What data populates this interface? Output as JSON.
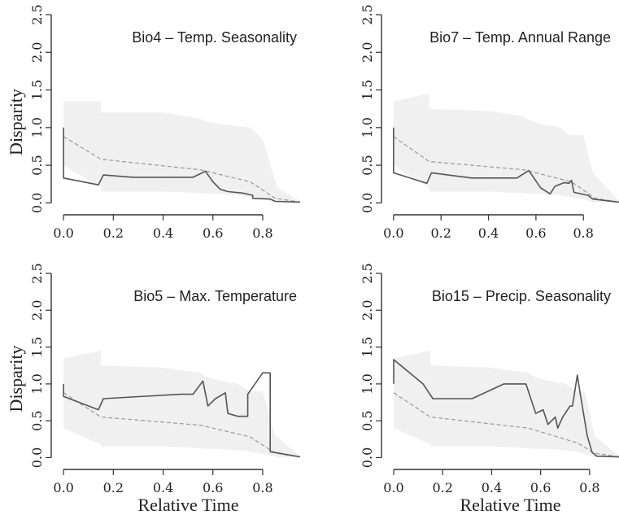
{
  "chart_data": [
    {
      "type": "line",
      "title": "Bio4 – Temp. Seasonality",
      "ylabel": "Disparity",
      "xlabel": "",
      "xlim": [
        -0.02,
        0.97
      ],
      "ylim": [
        -0.05,
        2.5
      ],
      "xticks": [
        "0.0",
        "0.2",
        "0.4",
        "0.6",
        "0.8"
      ],
      "yticks": [
        "0.0",
        "0.5",
        "1.0",
        "1.5",
        "2.0",
        "2.5"
      ],
      "band": {
        "x": [
          0.0,
          0.15,
          0.15,
          0.4,
          0.55,
          0.57,
          0.62,
          0.7,
          0.75,
          0.8,
          0.86,
          0.95
        ],
        "upper": [
          1.35,
          1.35,
          1.2,
          1.2,
          1.12,
          1.08,
          1.05,
          1.02,
          1.0,
          0.85,
          0.2,
          0.02
        ],
        "lower": [
          0.5,
          0.2,
          0.15,
          0.15,
          0.13,
          0.12,
          0.12,
          0.1,
          0.08,
          0.05,
          0.01,
          0.0
        ]
      },
      "observed": {
        "x": [
          0.0,
          0.0,
          0.14,
          0.16,
          0.28,
          0.52,
          0.57,
          0.6,
          0.63,
          0.66,
          0.72,
          0.76,
          0.76,
          0.83,
          0.85,
          0.95
        ],
        "y": [
          1.0,
          0.33,
          0.24,
          0.37,
          0.34,
          0.34,
          0.42,
          0.28,
          0.18,
          0.15,
          0.13,
          0.1,
          0.06,
          0.05,
          0.02,
          0.01
        ]
      },
      "null_median": {
        "x": [
          0.0,
          0.15,
          0.55,
          0.75,
          0.85,
          0.95
        ],
        "y": [
          0.88,
          0.58,
          0.44,
          0.28,
          0.06,
          0.01
        ]
      }
    },
    {
      "type": "line",
      "title": "Bio7 – Temp. Annual Range",
      "ylabel": "",
      "xlabel": "",
      "xlim": [
        -0.02,
        0.95
      ],
      "ylim": [
        -0.05,
        2.5
      ],
      "xticks": [
        "0.0",
        "0.2",
        "0.4",
        "0.6",
        "0.8"
      ],
      "yticks": [
        "0.0",
        "0.5",
        "1.0",
        "1.5",
        "2.0",
        "2.5"
      ],
      "band": {
        "x": [
          0.0,
          0.15,
          0.15,
          0.4,
          0.55,
          0.57,
          0.62,
          0.7,
          0.74,
          0.8,
          0.84,
          0.95
        ],
        "upper": [
          1.35,
          1.45,
          1.25,
          1.22,
          1.15,
          1.1,
          1.05,
          1.0,
          0.9,
          0.9,
          0.4,
          0.02
        ],
        "lower": [
          0.5,
          0.2,
          0.15,
          0.15,
          0.13,
          0.12,
          0.12,
          0.1,
          0.08,
          0.05,
          0.01,
          0.0
        ]
      },
      "observed": {
        "x": [
          0.0,
          0.0,
          0.14,
          0.16,
          0.33,
          0.52,
          0.57,
          0.62,
          0.66,
          0.68,
          0.72,
          0.74,
          0.75,
          0.76,
          0.82,
          0.84,
          0.95
        ],
        "y": [
          1.0,
          0.4,
          0.26,
          0.4,
          0.33,
          0.33,
          0.43,
          0.2,
          0.12,
          0.22,
          0.27,
          0.26,
          0.3,
          0.14,
          0.1,
          0.05,
          0.01
        ]
      },
      "null_median": {
        "x": [
          0.0,
          0.15,
          0.55,
          0.75,
          0.85,
          0.95
        ],
        "y": [
          0.88,
          0.55,
          0.44,
          0.28,
          0.06,
          0.01
        ]
      }
    },
    {
      "type": "line",
      "title": "Bio5 – Max. Temperature",
      "ylabel": "Disparity",
      "xlabel": "Relative Time",
      "xlim": [
        -0.02,
        0.97
      ],
      "ylim": [
        -0.05,
        2.5
      ],
      "xticks": [
        "0.0",
        "0.2",
        "0.4",
        "0.6",
        "0.8"
      ],
      "yticks": [
        "0.0",
        "0.5",
        "1.0",
        "1.5",
        "2.0",
        "2.5"
      ],
      "band": {
        "x": [
          0.0,
          0.15,
          0.15,
          0.4,
          0.55,
          0.57,
          0.62,
          0.7,
          0.75,
          0.8,
          0.85,
          0.95
        ],
        "upper": [
          1.35,
          1.45,
          1.25,
          1.22,
          1.15,
          1.1,
          1.05,
          1.0,
          0.9,
          0.9,
          0.3,
          0.02
        ],
        "lower": [
          0.4,
          0.18,
          0.15,
          0.15,
          0.13,
          0.12,
          0.12,
          0.1,
          0.08,
          0.05,
          0.01,
          0.0
        ]
      },
      "observed": {
        "x": [
          0.0,
          0.0,
          0.14,
          0.16,
          0.47,
          0.52,
          0.56,
          0.58,
          0.61,
          0.65,
          0.66,
          0.7,
          0.74,
          0.74,
          0.8,
          0.83,
          0.83,
          0.95
        ],
        "y": [
          1.0,
          0.83,
          0.65,
          0.8,
          0.86,
          0.86,
          1.04,
          0.7,
          0.8,
          0.88,
          0.6,
          0.56,
          0.56,
          0.86,
          1.15,
          1.15,
          0.08,
          0.01
        ]
      },
      "null_median": {
        "x": [
          0.0,
          0.15,
          0.55,
          0.75,
          0.85,
          0.95
        ],
        "y": [
          0.88,
          0.55,
          0.44,
          0.28,
          0.06,
          0.01
        ]
      }
    },
    {
      "type": "line",
      "title": "Bio15 – Precip. Seasonality",
      "ylabel": "",
      "xlabel": "Relative Time",
      "xlim": [
        -0.02,
        0.92
      ],
      "ylim": [
        -0.05,
        2.5
      ],
      "xticks": [
        "0.0",
        "0.2",
        "0.4",
        "0.6",
        "0.8"
      ],
      "yticks": [
        "0.0",
        "0.5",
        "1.0",
        "1.5",
        "2.0",
        "2.5"
      ],
      "band": {
        "x": [
          0.0,
          0.15,
          0.15,
          0.4,
          0.55,
          0.57,
          0.62,
          0.7,
          0.75,
          0.78,
          0.82,
          0.92
        ],
        "upper": [
          1.35,
          1.45,
          1.25,
          1.22,
          1.15,
          1.1,
          1.05,
          1.0,
          0.9,
          0.9,
          0.3,
          0.02
        ],
        "lower": [
          0.4,
          0.18,
          0.15,
          0.15,
          0.13,
          0.12,
          0.12,
          0.1,
          0.08,
          0.05,
          0.01,
          0.0
        ]
      },
      "observed": {
        "x": [
          0.0,
          0.0,
          0.12,
          0.16,
          0.32,
          0.45,
          0.54,
          0.58,
          0.61,
          0.63,
          0.66,
          0.67,
          0.69,
          0.72,
          0.73,
          0.75,
          0.76,
          0.79,
          0.81,
          0.83,
          0.92
        ],
        "y": [
          1.0,
          1.33,
          1.0,
          0.8,
          0.8,
          1.0,
          1.0,
          0.6,
          0.65,
          0.45,
          0.55,
          0.4,
          0.55,
          0.7,
          0.7,
          1.12,
          0.9,
          0.3,
          0.07,
          0.02,
          0.01
        ]
      },
      "null_median": {
        "x": [
          0.0,
          0.15,
          0.55,
          0.75,
          0.82,
          0.92
        ],
        "y": [
          0.88,
          0.55,
          0.4,
          0.2,
          0.06,
          0.01
        ]
      }
    }
  ]
}
